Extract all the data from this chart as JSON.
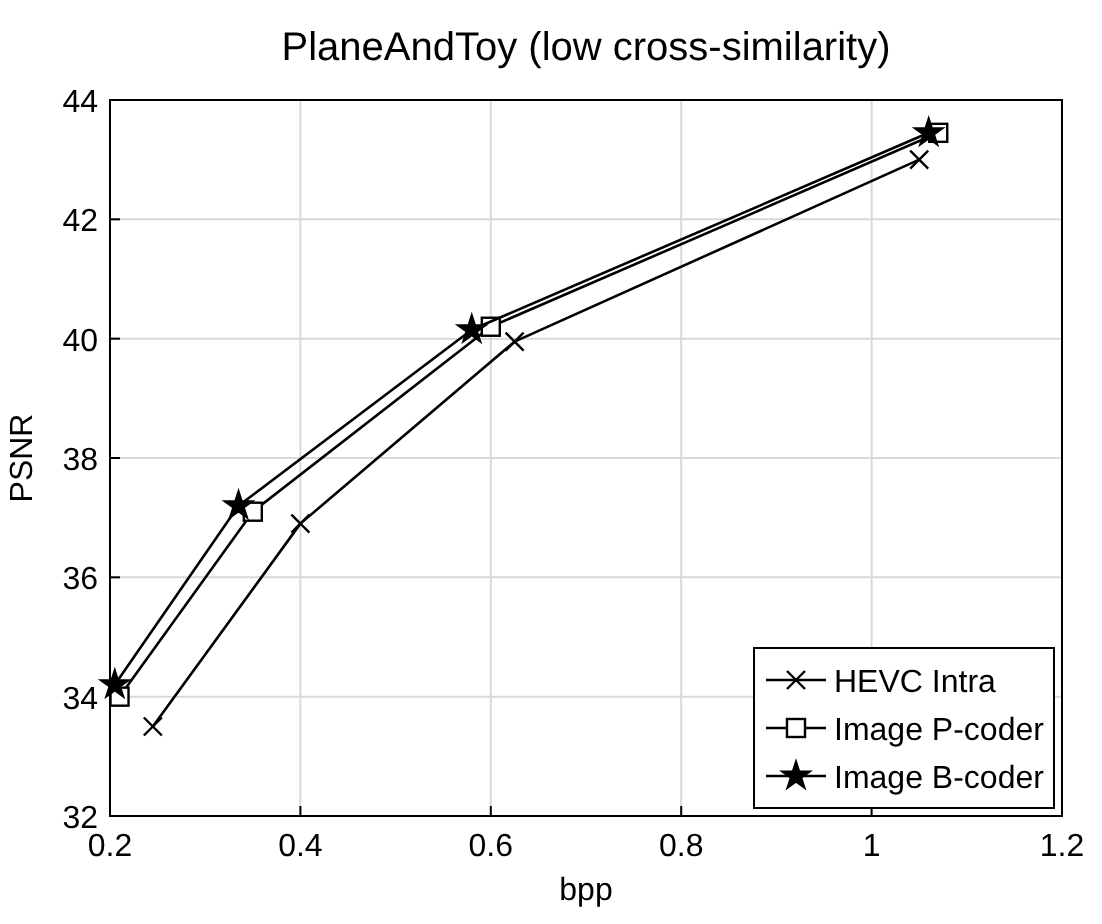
{
  "chart_data": {
    "type": "line",
    "title": "PlaneAndToy (low cross-similarity)",
    "xlabel": "bpp",
    "ylabel": "PSNR",
    "xlim": [
      0.2,
      1.2
    ],
    "xticks": [
      0.2,
      0.4,
      0.6,
      0.8,
      1,
      1.2
    ],
    "ylim": [
      32,
      44
    ],
    "yticks": [
      32,
      34,
      36,
      38,
      40,
      42,
      44
    ],
    "grid": true,
    "legend": "bottom right",
    "line_style": "solid",
    "series": [
      {
        "name": "HEVC Intra",
        "color": "#000000",
        "marker": "cross",
        "x": [
          0.245,
          0.4,
          0.625,
          1.05
        ],
        "values": [
          33.5,
          36.9,
          39.95,
          43.0
        ]
      },
      {
        "name": "Image P-coder",
        "color": "#000000",
        "marker": "square",
        "x": [
          0.21,
          0.35,
          0.6,
          1.07
        ],
        "values": [
          34.0,
          37.1,
          40.2,
          43.45
        ]
      },
      {
        "name": "Image B-coder",
        "color": "#000000",
        "marker": "star",
        "x": [
          0.205,
          0.335,
          0.58,
          1.06
        ],
        "values": [
          34.2,
          37.2,
          40.15,
          43.45
        ]
      }
    ]
  }
}
